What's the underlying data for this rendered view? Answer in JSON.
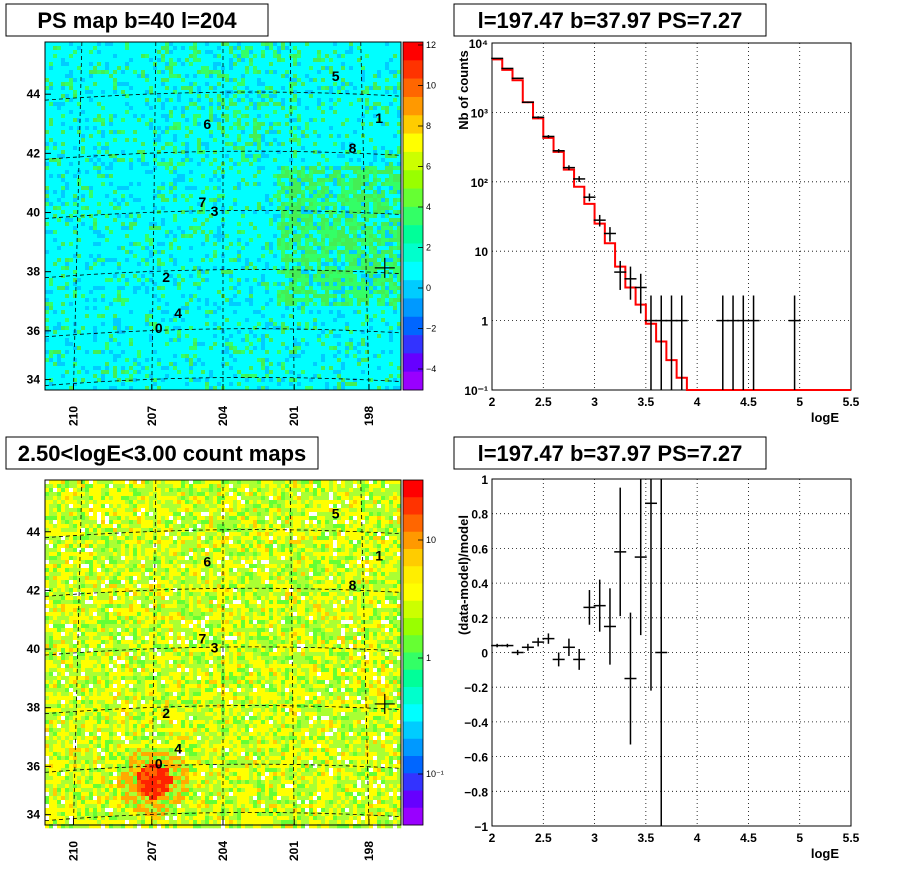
{
  "chart_data": [
    {
      "type": "heatmap",
      "title": "PS map b=40 l=204",
      "colors": [
        "#00ffff",
        "#33ff33"
      ],
      "y_ticks": [
        "34",
        "36",
        "38",
        "40",
        "42",
        "44"
      ],
      "x_ticks": [
        "210",
        "207",
        "204",
        "201",
        "198"
      ],
      "colorbar_ticks": [
        "12",
        "10",
        "8",
        "6",
        "4",
        "2",
        "0",
        "−2",
        "−4"
      ],
      "sources": [
        {
          "label": "0",
          "l": 206.8,
          "b": 35.8
        },
        {
          "label": "1",
          "l": 197.7,
          "b": 42.8
        },
        {
          "label": "2",
          "l": 206.5,
          "b": 37.5
        },
        {
          "label": "3",
          "l": 204.5,
          "b": 39.7
        },
        {
          "label": "4",
          "l": 206.0,
          "b": 36.3
        },
        {
          "label": "5",
          "l": 199.5,
          "b": 44.2
        },
        {
          "label": "6",
          "l": 204.8,
          "b": 42.6
        },
        {
          "label": "7",
          "l": 205.0,
          "b": 40.0
        },
        {
          "label": "8",
          "l": 198.8,
          "b": 41.8
        }
      ],
      "marker": {
        "l": 197.47,
        "b": 37.97
      }
    },
    {
      "type": "line",
      "title": "l=197.47 b=37.97 PS=7.27",
      "xlabel": "logE",
      "ylabel": "Nb of counts",
      "xlim": [
        2,
        5.5
      ],
      "ylim": [
        0.1,
        10000
      ],
      "log_y": true,
      "x_ticks": [
        "2",
        "2.5",
        "3",
        "3.5",
        "4",
        "4.5",
        "5",
        "5.5"
      ],
      "y_ticks": [
        "10⁴",
        "10³",
        "10²",
        "10",
        "1",
        "10⁻¹"
      ],
      "series": [
        {
          "kind": "data",
          "color": "#000000",
          "x": [
            2.05,
            2.15,
            2.25,
            2.35,
            2.45,
            2.55,
            2.65,
            2.75,
            2.85,
            2.95,
            3.05,
            3.15,
            3.25,
            3.35,
            3.45,
            3.55,
            3.65,
            3.75,
            3.85,
            4.25,
            4.35,
            4.45,
            4.55,
            4.95
          ],
          "values": [
            6000,
            4300,
            3100,
            1400,
            850,
            450,
            280,
            160,
            110,
            60,
            28,
            18,
            5,
            4,
            3,
            1,
            1,
            1,
            1,
            1,
            1,
            1,
            1,
            1
          ]
        },
        {
          "kind": "model",
          "color": "#ff0000",
          "edges": [
            2.0,
            2.1,
            2.2,
            2.3,
            2.4,
            2.5,
            2.6,
            2.7,
            2.8,
            2.9,
            3.0,
            3.1,
            3.2,
            3.3,
            3.4,
            3.5,
            3.6,
            3.7,
            3.8,
            3.9,
            4.0
          ],
          "values": [
            5800,
            4100,
            2900,
            1400,
            820,
            430,
            270,
            150,
            85,
            48,
            25,
            13,
            6,
            3,
            1.7,
            0.9,
            0.5,
            0.27,
            0.15,
            0.1
          ]
        }
      ]
    },
    {
      "type": "heatmap",
      "title": "2.50<logE<3.00 count maps",
      "colors": [
        "#ffff00",
        "#66ff33",
        "#ff0000"
      ],
      "y_ticks": [
        "34",
        "36",
        "38",
        "40",
        "42",
        "44"
      ],
      "x_ticks": [
        "210",
        "207",
        "204",
        "201",
        "198"
      ],
      "colorbar_ticks": [
        "10",
        "1",
        "10⁻¹"
      ],
      "sources": [
        {
          "label": "0",
          "l": 206.8,
          "b": 35.8
        },
        {
          "label": "1",
          "l": 197.7,
          "b": 42.8
        },
        {
          "label": "2",
          "l": 206.5,
          "b": 37.5
        },
        {
          "label": "3",
          "l": 204.5,
          "b": 39.7
        },
        {
          "label": "4",
          "l": 206.0,
          "b": 36.3
        },
        {
          "label": "5",
          "l": 199.5,
          "b": 44.2
        },
        {
          "label": "6",
          "l": 204.8,
          "b": 42.6
        },
        {
          "label": "7",
          "l": 205.0,
          "b": 40.0
        },
        {
          "label": "8",
          "l": 198.8,
          "b": 41.8
        }
      ],
      "marker": {
        "l": 197.47,
        "b": 37.97
      }
    },
    {
      "type": "scatter",
      "title": "l=197.47 b=37.97 PS=7.27",
      "xlabel": "logE",
      "ylabel": "(data-model)/model",
      "xlim": [
        2,
        5.5
      ],
      "ylim": [
        -1,
        1
      ],
      "x_ticks": [
        "2",
        "2.5",
        "3",
        "3.5",
        "4",
        "4.5",
        "5",
        "5.5"
      ],
      "y_ticks": [
        "1",
        "0.8",
        "0.6",
        "0.4",
        "0.2",
        "0",
        "−0.2",
        "−0.4",
        "−0.6",
        "−0.8",
        "−1"
      ],
      "points": [
        {
          "x": 2.05,
          "y": 0.04,
          "err": 0.01
        },
        {
          "x": 2.15,
          "y": 0.04,
          "err": 0.01
        },
        {
          "x": 2.25,
          "y": 0.0,
          "err": 0.015
        },
        {
          "x": 2.35,
          "y": 0.03,
          "err": 0.02
        },
        {
          "x": 2.45,
          "y": 0.06,
          "err": 0.025
        },
        {
          "x": 2.55,
          "y": 0.08,
          "err": 0.03
        },
        {
          "x": 2.65,
          "y": -0.04,
          "err": 0.04
        },
        {
          "x": 2.75,
          "y": 0.03,
          "err": 0.05
        },
        {
          "x": 2.85,
          "y": -0.04,
          "err": 0.06
        },
        {
          "x": 2.95,
          "y": 0.26,
          "err": 0.1
        },
        {
          "x": 3.05,
          "y": 0.27,
          "err": 0.15
        },
        {
          "x": 3.15,
          "y": 0.15,
          "err": 0.22
        },
        {
          "x": 3.25,
          "y": 0.58,
          "err": 0.37
        },
        {
          "x": 3.35,
          "y": -0.15,
          "err": 0.38
        },
        {
          "x": 3.45,
          "y": 0.55,
          "err": 0.45
        },
        {
          "x": 3.55,
          "y": 0.86,
          "err": 1.08
        },
        {
          "x": 3.65,
          "y": 0.0,
          "err": 1.8
        }
      ]
    }
  ]
}
